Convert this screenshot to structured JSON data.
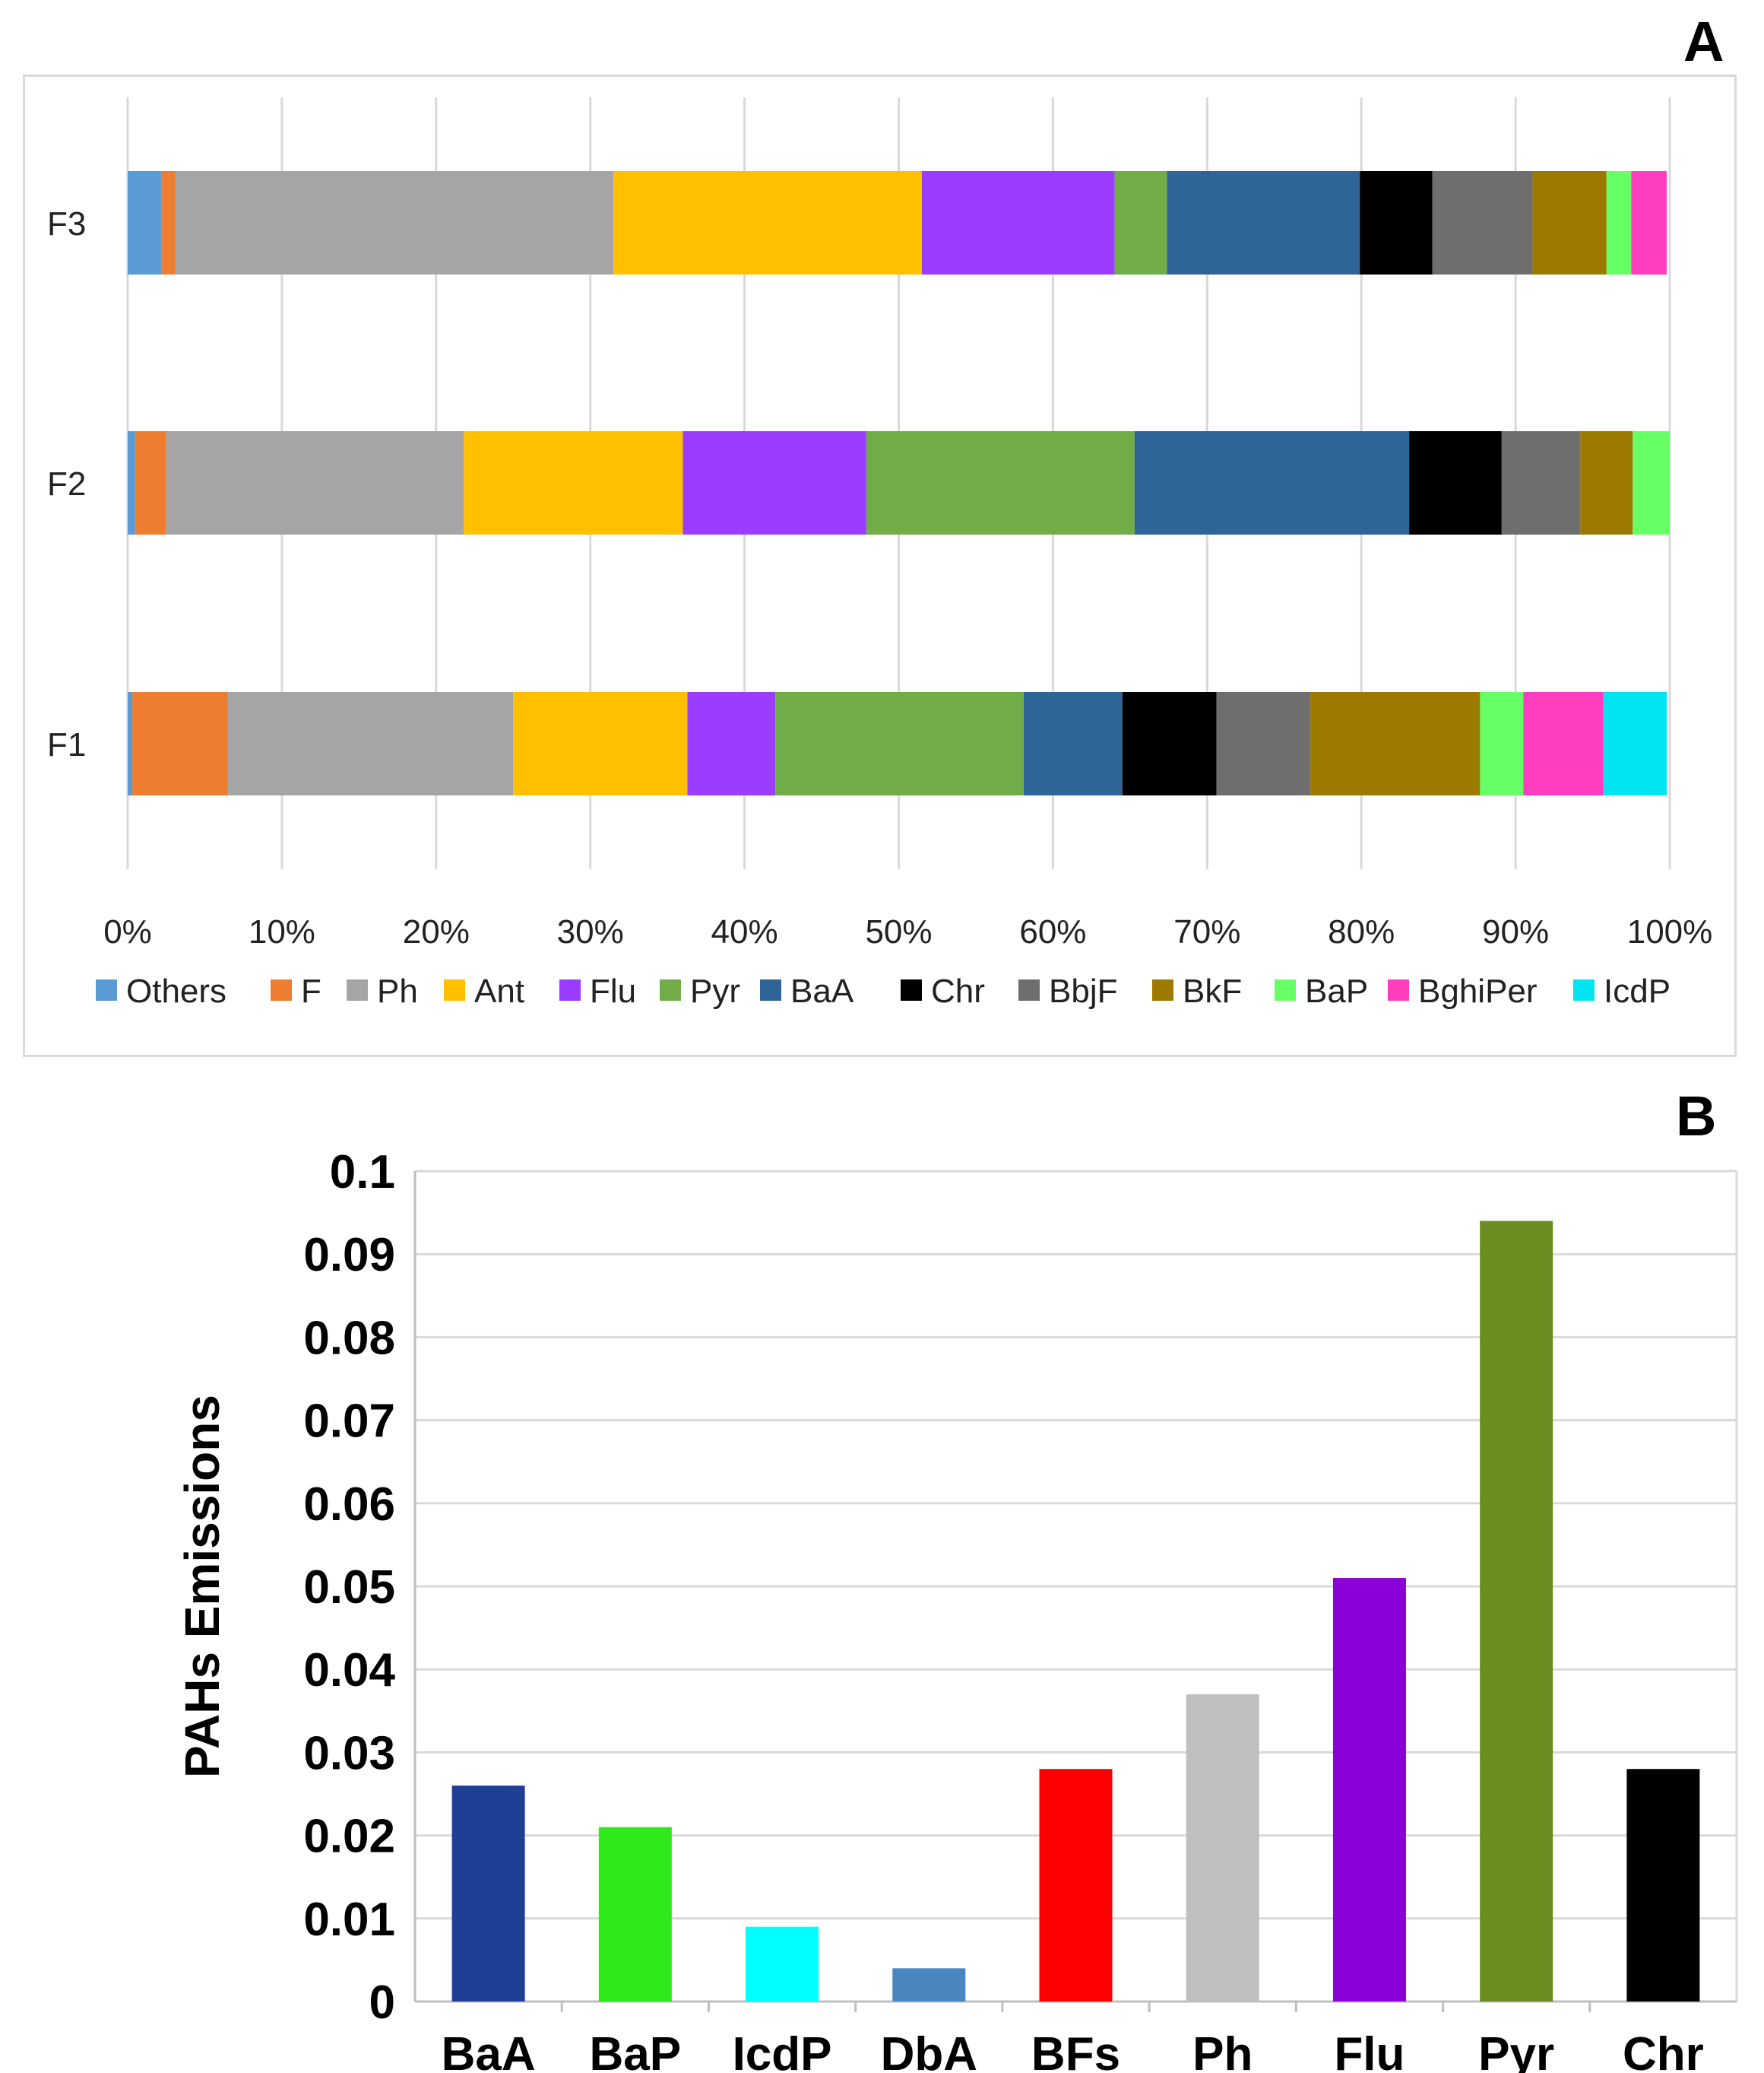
{
  "panels": {
    "a_label": "A",
    "b_label": "B"
  },
  "chart_data": [
    {
      "type": "bar",
      "orientation": "horizontal",
      "stacked": "percent",
      "categories": [
        "F1",
        "F2",
        "F3"
      ],
      "xlim": [
        0,
        100
      ],
      "x_ticks": [
        "0%",
        "10%",
        "20%",
        "30%",
        "40%",
        "50%",
        "60%",
        "70%",
        "80%",
        "90%",
        "100%"
      ],
      "grid": true,
      "legend_position": "bottom",
      "series": [
        {
          "name": "Others",
          "color": "#5B9BD5",
          "values": [
            0.3,
            0.5,
            2.2
          ]
        },
        {
          "name": "F",
          "color": "#ED7D31",
          "values": [
            6.2,
            2.0,
            0.9
          ]
        },
        {
          "name": "Ph",
          "color": "#A5A5A5",
          "values": [
            18.5,
            19.3,
            28.4
          ]
        },
        {
          "name": "Ant",
          "color": "#FFC000",
          "values": [
            11.3,
            14.2,
            20.0
          ]
        },
        {
          "name": "Flu",
          "color": "#9B3DFF",
          "values": [
            5.7,
            11.9,
            12.5
          ]
        },
        {
          "name": "Pyr",
          "color": "#70AD47",
          "values": [
            16.1,
            17.4,
            3.4
          ]
        },
        {
          "name": "BaA",
          "color": "#2E6496",
          "values": [
            6.4,
            17.8,
            12.5
          ]
        },
        {
          "name": "Chr",
          "color": "#000000",
          "values": [
            6.1,
            6.0,
            4.7
          ]
        },
        {
          "name": "BbjF",
          "color": "#6E6E6E",
          "values": [
            6.1,
            5.1,
            6.5
          ]
        },
        {
          "name": "BkF",
          "color": "#9C7A00",
          "values": [
            11.0,
            3.4,
            4.8
          ]
        },
        {
          "name": "BaP",
          "color": "#66FF66",
          "values": [
            2.8,
            2.4,
            1.6
          ]
        },
        {
          "name": "BghiPer",
          "color": "#FF3DBE",
          "values": [
            5.2,
            0.0,
            2.3
          ]
        },
        {
          "name": "IcdP",
          "color": "#00E5F0",
          "values": [
            4.1,
            0.0,
            0.0
          ]
        }
      ]
    },
    {
      "type": "bar",
      "categories": [
        "BaA",
        "BaP",
        "IcdP",
        "DbA",
        "BFs",
        "Ph",
        "Flu",
        "Pyr",
        "Chr"
      ],
      "values": [
        0.026,
        0.021,
        0.009,
        0.004,
        0.028,
        0.037,
        0.051,
        0.094,
        0.028
      ],
      "colors": [
        "#1F3E95",
        "#2EEA1A",
        "#00FFFF",
        "#4A86C0",
        "#FF0000",
        "#BFBFBF",
        "#8B00D6",
        "#6B8E23",
        "#000000"
      ],
      "ylabel": "PAHs Emissions",
      "xlabel": "",
      "ylim": [
        0,
        0.1
      ],
      "y_ticks": [
        "0",
        "0.01",
        "0.02",
        "0.03",
        "0.04",
        "0.05",
        "0.06",
        "0.07",
        "0.08",
        "0.09",
        "0.1"
      ],
      "grid": true
    }
  ]
}
